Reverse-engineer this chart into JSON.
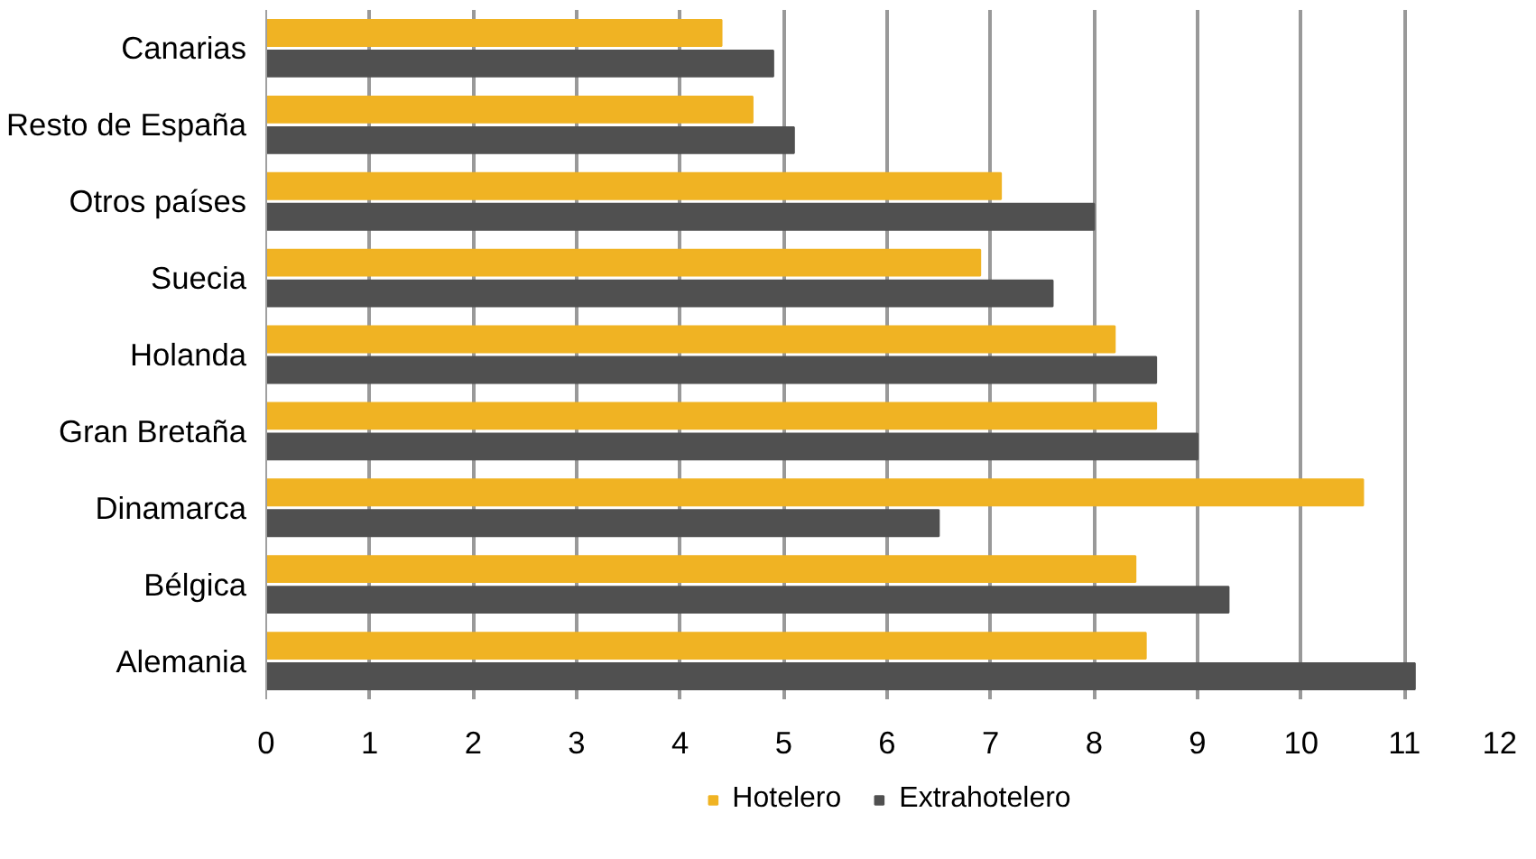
{
  "chart_data": {
    "type": "bar",
    "orientation": "horizontal",
    "categories": [
      "Canarias",
      "Resto de España",
      "Otros países",
      "Suecia",
      "Holanda",
      "Gran Bretaña",
      "Dinamarca",
      "Bélgica",
      "Alemania"
    ],
    "series": [
      {
        "name": "Hotelero",
        "color": "#f0b323",
        "values": [
          4.4,
          4.7,
          7.1,
          6.9,
          8.2,
          8.6,
          10.6,
          8.4,
          8.5
        ]
      },
      {
        "name": "Extrahotelero",
        "color": "#505050",
        "values": [
          4.9,
          5.1,
          8.0,
          7.6,
          8.6,
          9.0,
          6.5,
          9.3,
          11.1
        ]
      }
    ],
    "xlim": [
      0,
      12
    ],
    "xticks": [
      0,
      1,
      2,
      3,
      4,
      5,
      6,
      7,
      8,
      9,
      10,
      11,
      12
    ],
    "grid": "x",
    "legend": "bottom"
  }
}
